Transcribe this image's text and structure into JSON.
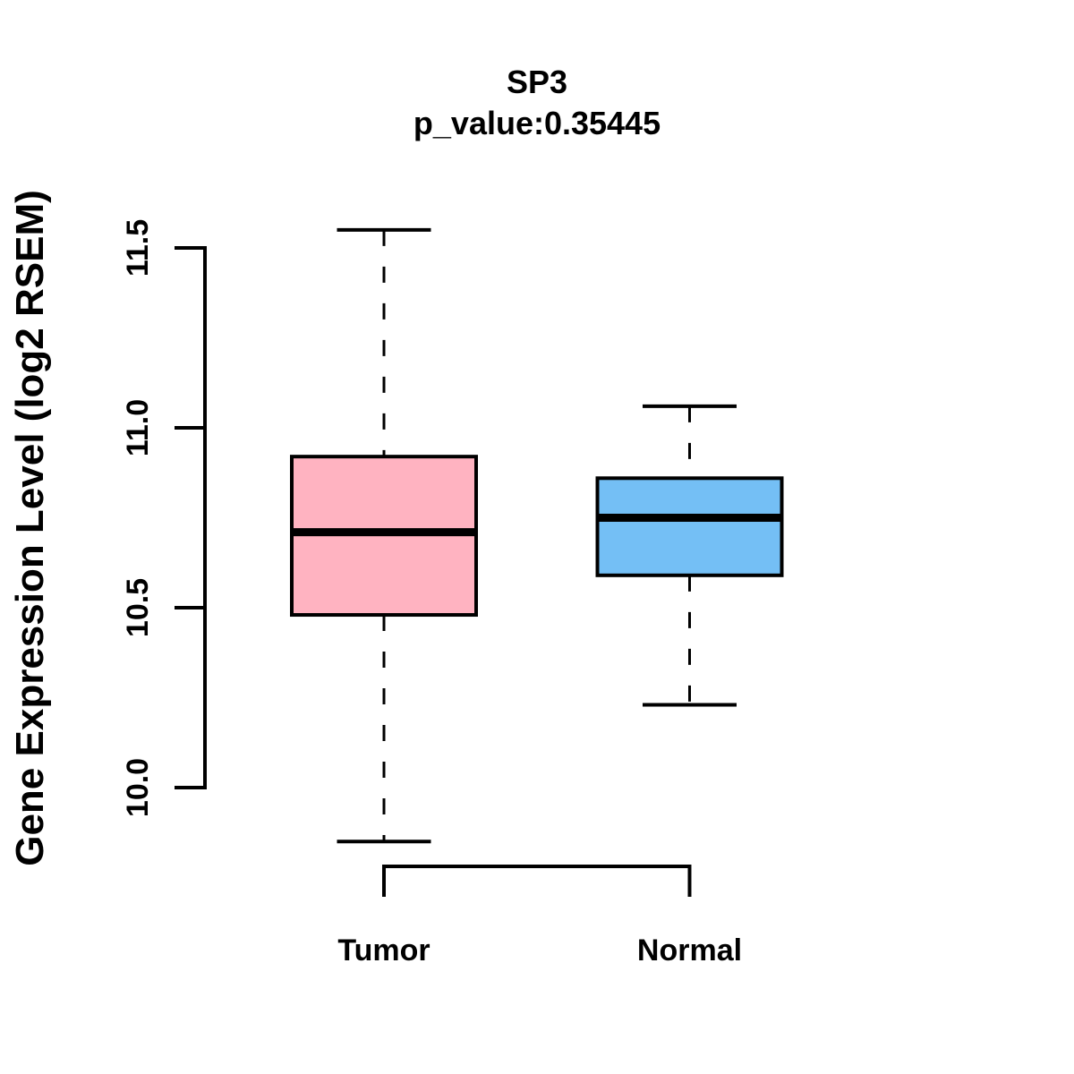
{
  "figure": {
    "background": "#ffffff",
    "foreground": "#000000"
  },
  "chart_data": {
    "type": "boxplot",
    "title": "SP3",
    "subtitle": "p_value:0.35445",
    "p_value": "0.35445",
    "ylabel": "Gene Expression Level (log2 RSEM)",
    "xlabel": "",
    "categories": [
      "Tumor",
      "Normal"
    ],
    "ylim": [
      10.0,
      11.5
    ],
    "yticks": [
      10.0,
      10.5,
      11.0,
      11.5
    ],
    "ytick_labels": [
      "10.0",
      "10.5",
      "11.0",
      "11.5"
    ],
    "grid": false,
    "legend": "none",
    "series": [
      {
        "name": "Tumor",
        "color": "#ffb3c1",
        "whisker_low": 9.85,
        "q1": 10.48,
        "median": 10.71,
        "q3": 10.92,
        "whisker_high": 11.55
      },
      {
        "name": "Normal",
        "color": "#74bff5",
        "whisker_low": 10.23,
        "q1": 10.59,
        "median": 10.75,
        "q3": 10.86,
        "whisker_high": 11.06
      }
    ],
    "line_color": "#000000"
  }
}
